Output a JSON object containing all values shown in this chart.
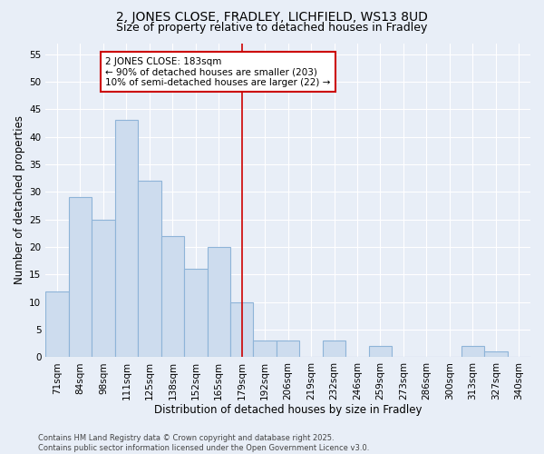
{
  "title": "2, JONES CLOSE, FRADLEY, LICHFIELD, WS13 8UD",
  "subtitle": "Size of property relative to detached houses in Fradley",
  "xlabel": "Distribution of detached houses by size in Fradley",
  "ylabel": "Number of detached properties",
  "categories": [
    "71sqm",
    "84sqm",
    "98sqm",
    "111sqm",
    "125sqm",
    "138sqm",
    "152sqm",
    "165sqm",
    "179sqm",
    "192sqm",
    "206sqm",
    "219sqm",
    "232sqm",
    "246sqm",
    "259sqm",
    "273sqm",
    "286sqm",
    "300sqm",
    "313sqm",
    "327sqm",
    "340sqm"
  ],
  "values": [
    12,
    29,
    25,
    43,
    32,
    22,
    16,
    20,
    10,
    3,
    3,
    0,
    3,
    0,
    2,
    0,
    0,
    0,
    2,
    1,
    0
  ],
  "bar_color": "#cddcee",
  "bar_edge_color": "#8eb4d8",
  "background_color": "#e8eef7",
  "grid_color": "#ffffff",
  "vline_x_idx": 8,
  "vline_color": "#cc0000",
  "annotation_text": "2 JONES CLOSE: 183sqm\n← 90% of detached houses are smaller (203)\n10% of semi-detached houses are larger (22) →",
  "annotation_box_color": "#ffffff",
  "annotation_edge_color": "#cc0000",
  "footer": "Contains HM Land Registry data © Crown copyright and database right 2025.\nContains public sector information licensed under the Open Government Licence v3.0.",
  "ylim": [
    0,
    57
  ],
  "yticks": [
    0,
    5,
    10,
    15,
    20,
    25,
    30,
    35,
    40,
    45,
    50,
    55
  ],
  "title_fontsize": 10,
  "subtitle_fontsize": 9,
  "axis_label_fontsize": 8.5,
  "tick_fontsize": 7.5,
  "footer_fontsize": 6,
  "annotation_fontsize": 7.5
}
